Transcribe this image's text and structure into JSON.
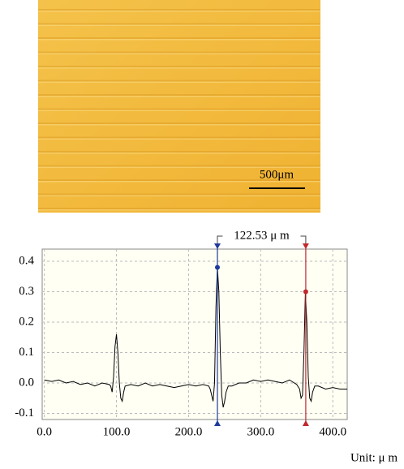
{
  "micrograph": {
    "scale_bar": "500μm"
  },
  "chart_data": {
    "type": "line",
    "x": [
      0,
      10,
      20,
      30,
      40,
      50,
      60,
      70,
      80,
      90,
      92,
      94,
      96,
      98,
      100,
      102,
      104,
      106,
      108,
      110,
      112,
      120,
      130,
      140,
      150,
      160,
      170,
      180,
      190,
      200,
      210,
      220,
      228,
      230,
      232,
      234,
      236,
      238,
      240,
      242,
      244,
      246,
      248,
      250,
      252,
      255,
      260,
      270,
      280,
      290,
      300,
      310,
      320,
      330,
      340,
      350,
      354,
      356,
      358,
      360,
      362,
      364,
      366,
      368,
      370,
      372,
      375,
      380,
      390,
      400,
      410,
      420
    ],
    "series": [
      {
        "color": "#000000",
        "values": [
          0.01,
          0.005,
          0.01,
          0,
          0.005,
          -0.005,
          0,
          -0.01,
          0,
          -0.005,
          -0.01,
          -0.03,
          0.02,
          0.12,
          0.16,
          0.1,
          0,
          -0.05,
          -0.06,
          -0.03,
          -0.01,
          -0.005,
          -0.01,
          0,
          -0.01,
          -0.005,
          -0.01,
          -0.015,
          -0.01,
          -0.005,
          -0.01,
          -0.005,
          -0.01,
          -0.02,
          -0.04,
          -0.06,
          0,
          0.25,
          0.38,
          0.3,
          0.1,
          -0.04,
          -0.08,
          -0.06,
          -0.03,
          -0.01,
          -0.01,
          0,
          0,
          0.01,
          0.005,
          0.01,
          0.005,
          0,
          0.01,
          -0.005,
          -0.02,
          -0.05,
          -0.04,
          0.1,
          0.3,
          0.2,
          0.02,
          -0.05,
          -0.06,
          -0.03,
          -0.01,
          -0.01,
          -0.02,
          -0.015,
          -0.02,
          -0.02
        ]
      }
    ],
    "cursors": [
      {
        "x": 240,
        "y": 0.38,
        "color": "#1f3a9e"
      },
      {
        "x": 362.53,
        "y": 0.3,
        "color": "#c0282d"
      }
    ],
    "annotation": "122.53 μ m",
    "unit_label": "Unit: μ m",
    "xlim": [
      -3,
      420
    ],
    "ylim": [
      -0.12,
      0.44
    ],
    "xticks": [
      {
        "value": 0,
        "label": "0.0"
      },
      {
        "value": 100,
        "label": "100.0"
      },
      {
        "value": 200,
        "label": "200.0"
      },
      {
        "value": 300,
        "label": "300.0"
      },
      {
        "value": 400,
        "label": "400.0"
      }
    ],
    "yticks": [
      -0.1,
      {
        "value": 0,
        "label": "0.0"
      },
      0.1,
      0.2,
      0.3,
      0.4
    ],
    "grid": true
  }
}
